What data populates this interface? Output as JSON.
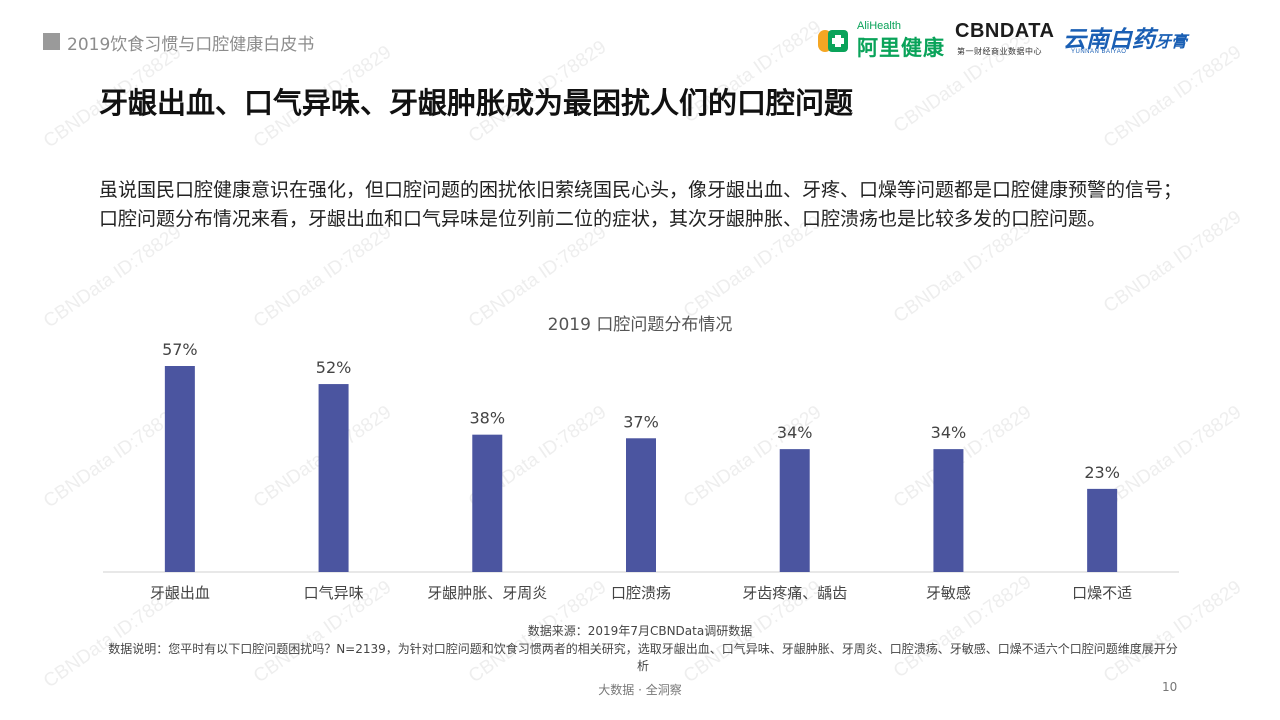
{
  "header": {
    "report_title": "2019饮食习惯与口腔健康白皮书",
    "logos": {
      "alihealth_small": "AliHealth",
      "alihealth_big": "阿里健康",
      "cbndata": "CBNDATA",
      "cbndata_sub": "第一财经商业数据中心",
      "yunnan": "云南白药",
      "yunnan_suffix": "牙膏",
      "yunnan_sub": "YUNNAN BAIYAO"
    }
  },
  "slide": {
    "title": "牙龈出血、口气异味、牙龈肿胀成为最困扰人们的口腔问题",
    "description": "虽说国民口腔健康意识在强化，但口腔问题的困扰依旧萦绕国民心头，像牙龈出血、牙疼、口燥等问题都是口腔健康预警的信号；口腔问题分布情况来看，牙龈出血和口气异味是位列前二位的症状，其次牙龈肿胀、口腔溃疡也是比较多发的口腔问题。"
  },
  "chart_data": {
    "type": "bar",
    "title": "2019 口腔问题分布情况",
    "categories": [
      "牙龈出血",
      "口气异味",
      "牙龈肿胀、牙周炎",
      "口腔溃疡",
      "牙齿疼痛、龋齿",
      "牙敏感",
      "口燥不适"
    ],
    "values": [
      57,
      52,
      38,
      37,
      34,
      34,
      23
    ],
    "value_labels": [
      "57%",
      "52%",
      "38%",
      "37%",
      "34%",
      "34%",
      "23%"
    ],
    "unit": "%",
    "ylim": [
      0,
      60
    ],
    "grid": false,
    "bar_color": "#4b55a0"
  },
  "footer": {
    "source": "数据来源：2019年7月CBNData调研数据",
    "note": "数据说明：您平时有以下口腔问题困扰吗？N=2139，为针对口腔问题和饮食习惯两者的相关研究，选取牙龈出血、口气异味、牙龈肿胀、牙周炎、口腔溃疡、牙敏感、口燥不适六个口腔问题维度展开分析",
    "slogan": "大数据 · 全洞察",
    "page_number": "10"
  },
  "watermark_text": "CBNData ID:78829"
}
